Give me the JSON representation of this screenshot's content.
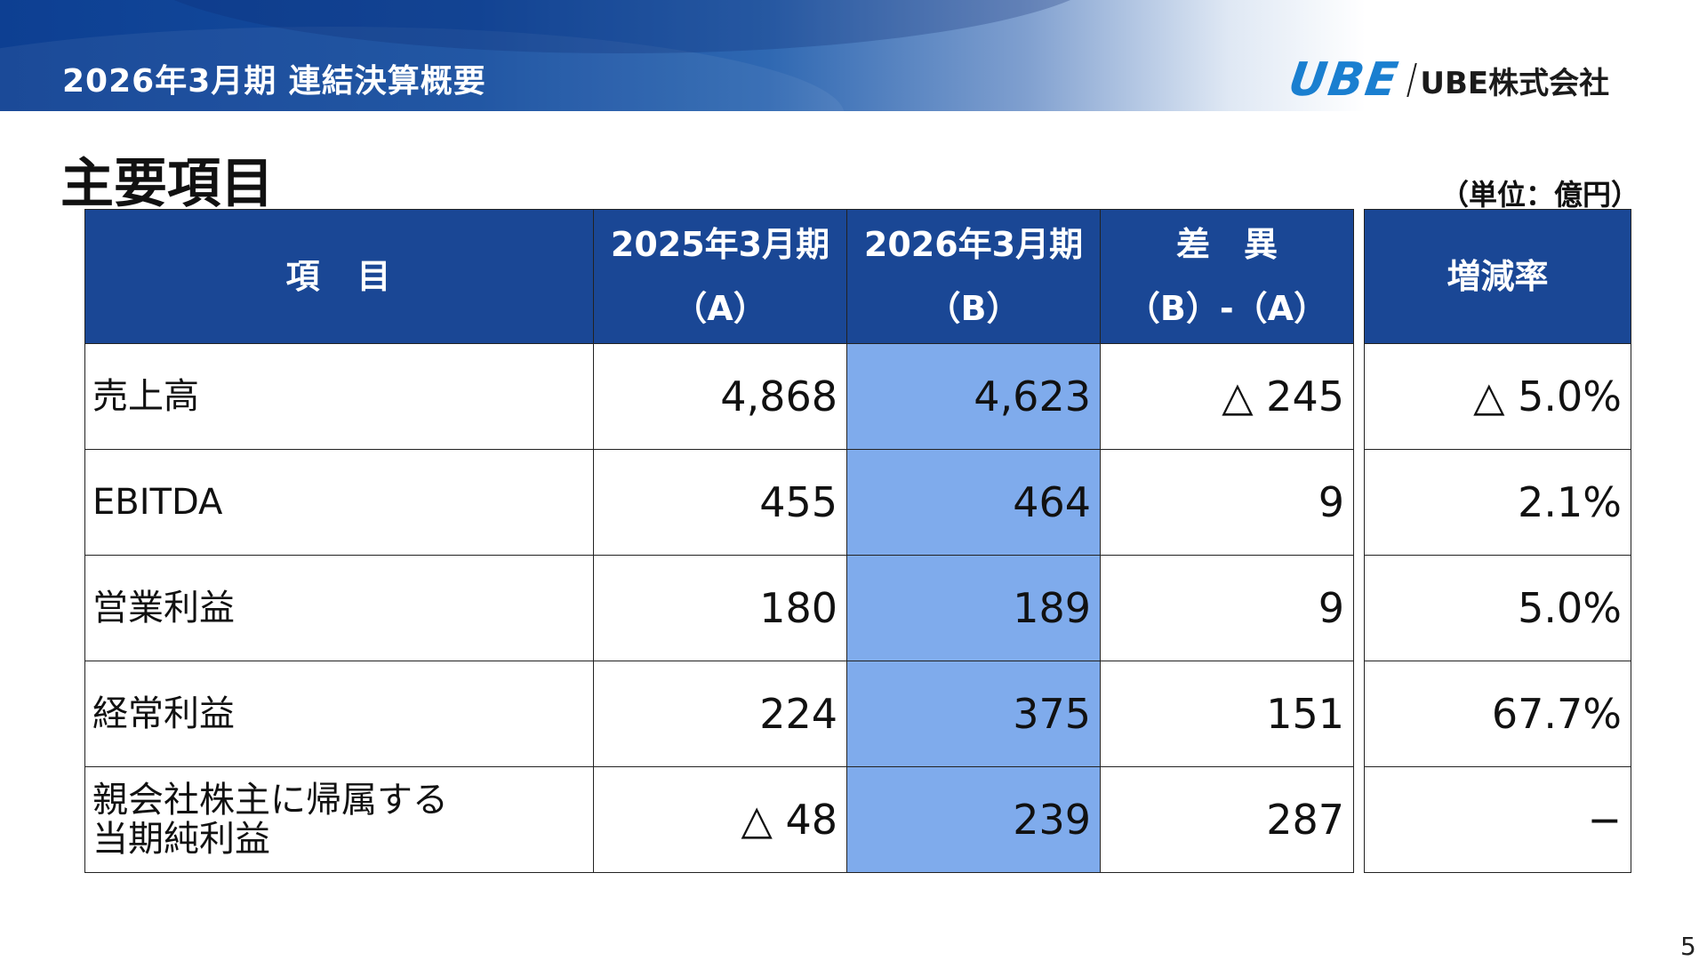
{
  "header": {
    "title": "2026年3月期 連結決算概要",
    "logo_mark": "UBE",
    "logo_text": "UBE株式会社"
  },
  "page": {
    "title": "主要項目",
    "unit": "（単位：億円）",
    "number": "5"
  },
  "table": {
    "columns": [
      {
        "line1": "項　目",
        "line2": ""
      },
      {
        "line1": "2025年3月期",
        "line2": "（A）"
      },
      {
        "line1": "2026年3月期",
        "line2": "（B）"
      },
      {
        "line1": "差　異",
        "line2": "（B）-（A）"
      },
      {
        "line1": "増減率",
        "line2": ""
      }
    ],
    "rows": [
      {
        "item": "売上高",
        "fy2025": "4,868",
        "fy2026": "4,623",
        "diff": "△ 245",
        "rate": "△ 5.0%"
      },
      {
        "item": "EBITDA",
        "fy2025": "455",
        "fy2026": "464",
        "diff": "9",
        "rate": "2.1%"
      },
      {
        "item": "営業利益",
        "fy2025": "180",
        "fy2026": "189",
        "diff": "9",
        "rate": "5.0%"
      },
      {
        "item": "経常利益",
        "fy2025": "224",
        "fy2026": "375",
        "diff": "151",
        "rate": "67.7%"
      },
      {
        "item": "親会社株主に帰属する\n当期純利益",
        "fy2025": "△ 48",
        "fy2026": "239",
        "diff": "287",
        "rate": "−"
      }
    ]
  },
  "colors": {
    "header_blue": "#1a4795",
    "highlight": "#7fabec",
    "logo_blue": "#1a7fd0"
  }
}
